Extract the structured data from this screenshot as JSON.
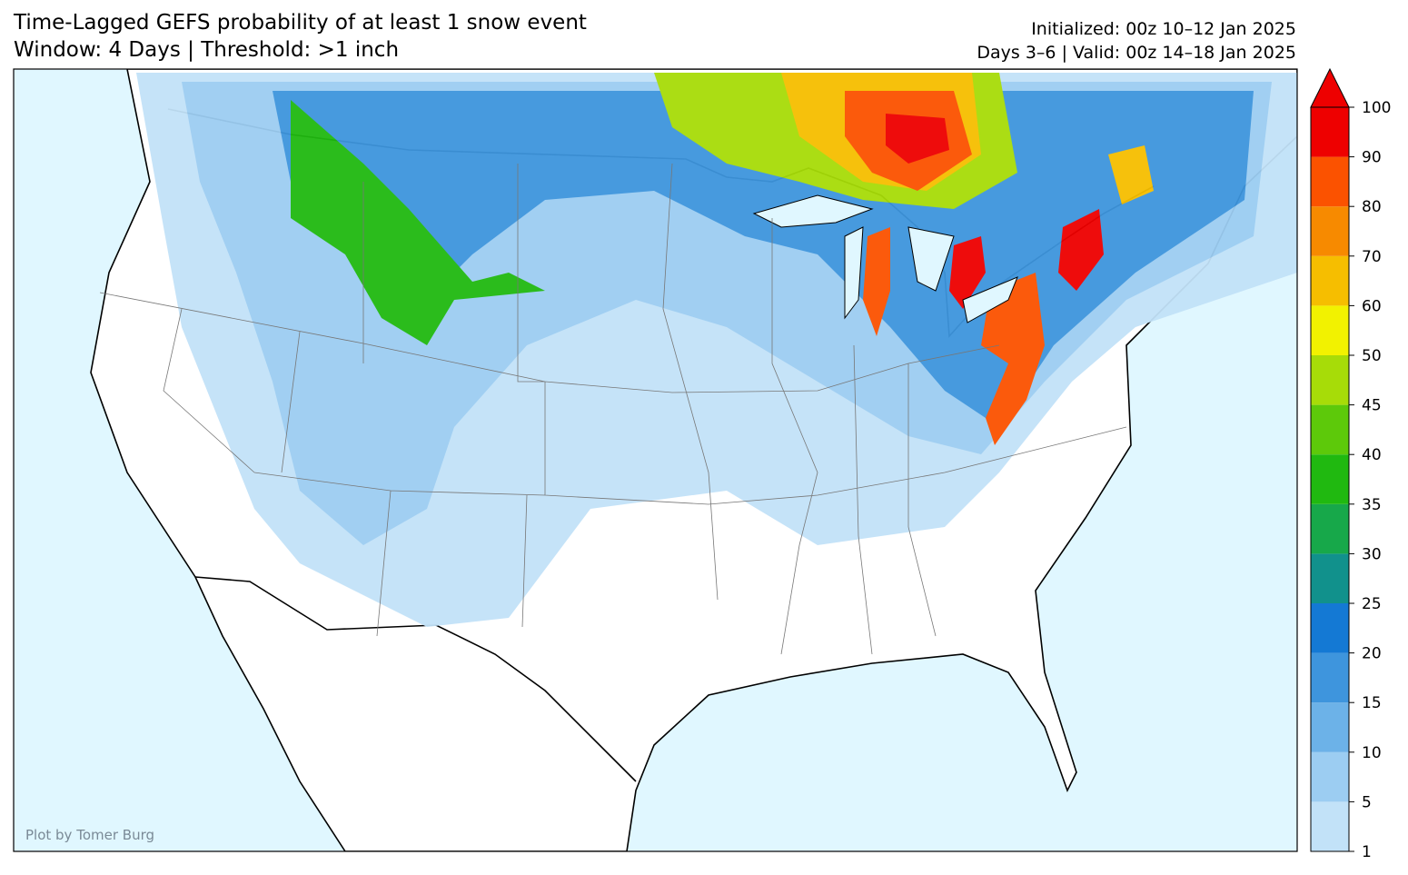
{
  "header": {
    "title_line1": "Time-Lagged GEFS probability of at least 1 snow event",
    "title_line2": "Window: 4 Days | Threshold: >1 inch",
    "init": "Initialized: 00z 10–12 Jan 2025",
    "valid": "Days 3–6 | Valid: 00z 14–18 Jan 2025"
  },
  "colorbar": {
    "levels": [
      1,
      5,
      10,
      15,
      20,
      25,
      30,
      35,
      40,
      45,
      50,
      60,
      70,
      80,
      90,
      100
    ],
    "colors": [
      "#c2e2f8",
      "#9ccdf2",
      "#6cb2e8",
      "#3e95dd",
      "#1479d4",
      "#11918c",
      "#17a84a",
      "#20b910",
      "#5dc90a",
      "#a7dc08",
      "#f2f200",
      "#f6be00",
      "#f78a00",
      "#fb5200",
      "#ee0000"
    ],
    "extend_color": "#ee0000"
  },
  "credit": "Plot by Tomer Burg"
}
